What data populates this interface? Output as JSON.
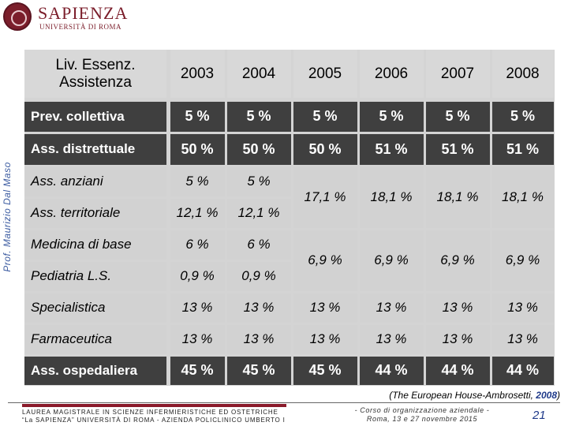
{
  "logo": {
    "name": "SAPIENZA",
    "subtitle": "UNIVERSITÀ DI ROMA"
  },
  "side_text": "Prof. Maurizio Dal Maso",
  "table": {
    "header_label_line1": "Liv.  Essenz.",
    "header_label_line2": "Assistenza",
    "years": [
      "2003",
      "2004",
      "2005",
      "2006",
      "2007",
      "2008"
    ],
    "rows": [
      {
        "label": "Prev. collettiva",
        "values": [
          "5 %",
          "5 %",
          "5 %",
          "5 %",
          "5 %",
          "5 %"
        ]
      },
      {
        "label": "Ass. distrettuale",
        "values": [
          "50 %",
          "50 %",
          "50 %",
          "51 %",
          "51 %",
          "51 %"
        ]
      },
      {
        "label": "Ass. anziani",
        "values": [
          "5 %",
          "5 %"
        ]
      },
      {
        "label": "Ass. territoriale",
        "values": [
          "12,1 %",
          "12,1 %"
        ]
      },
      {
        "label": "Medicina di base",
        "values": [
          "6 %",
          "6 %"
        ]
      },
      {
        "label": "Pediatria L.S.",
        "values": [
          "0,9 %",
          "0,9 %"
        ]
      },
      {
        "label": "Specialistica",
        "values": [
          "13 %",
          "13 %",
          "13 %",
          "13 %",
          "13 %",
          "13 %"
        ]
      },
      {
        "label": "Farmaceutica",
        "values": [
          "13 %",
          "13 %",
          "13 %",
          "13 %",
          "13 %",
          "13 %"
        ]
      },
      {
        "label": "Ass. ospedaliera",
        "values": [
          "45 %",
          "45 %",
          "45 %",
          "44 %",
          "44 %",
          "44 %"
        ]
      }
    ],
    "merged_territorial": [
      "17,1 %",
      "18,1 %",
      "18,1 %",
      "18,1 %"
    ],
    "merged_base": [
      "6,9 %",
      "6,9 %",
      "6,9 %",
      "6,9 %"
    ]
  },
  "citation": {
    "text": "(The  European  House-Ambrosetti, ",
    "year": "2008",
    "close": ")"
  },
  "footer": {
    "line1": "LAUREA MAGISTRALE IN SCIENZE INFERMIERISTICHE ED OSTETRICHE",
    "line2": "“La SAPIENZA” UNIVERSITÀ DI ROMA - AZIENDA POLICLINICO UMBERTO I",
    "course_line1": "- Corso di organizzazione aziendale -",
    "course_line2": "Roma, 13 e 27 novembre 2015",
    "page": "21"
  }
}
